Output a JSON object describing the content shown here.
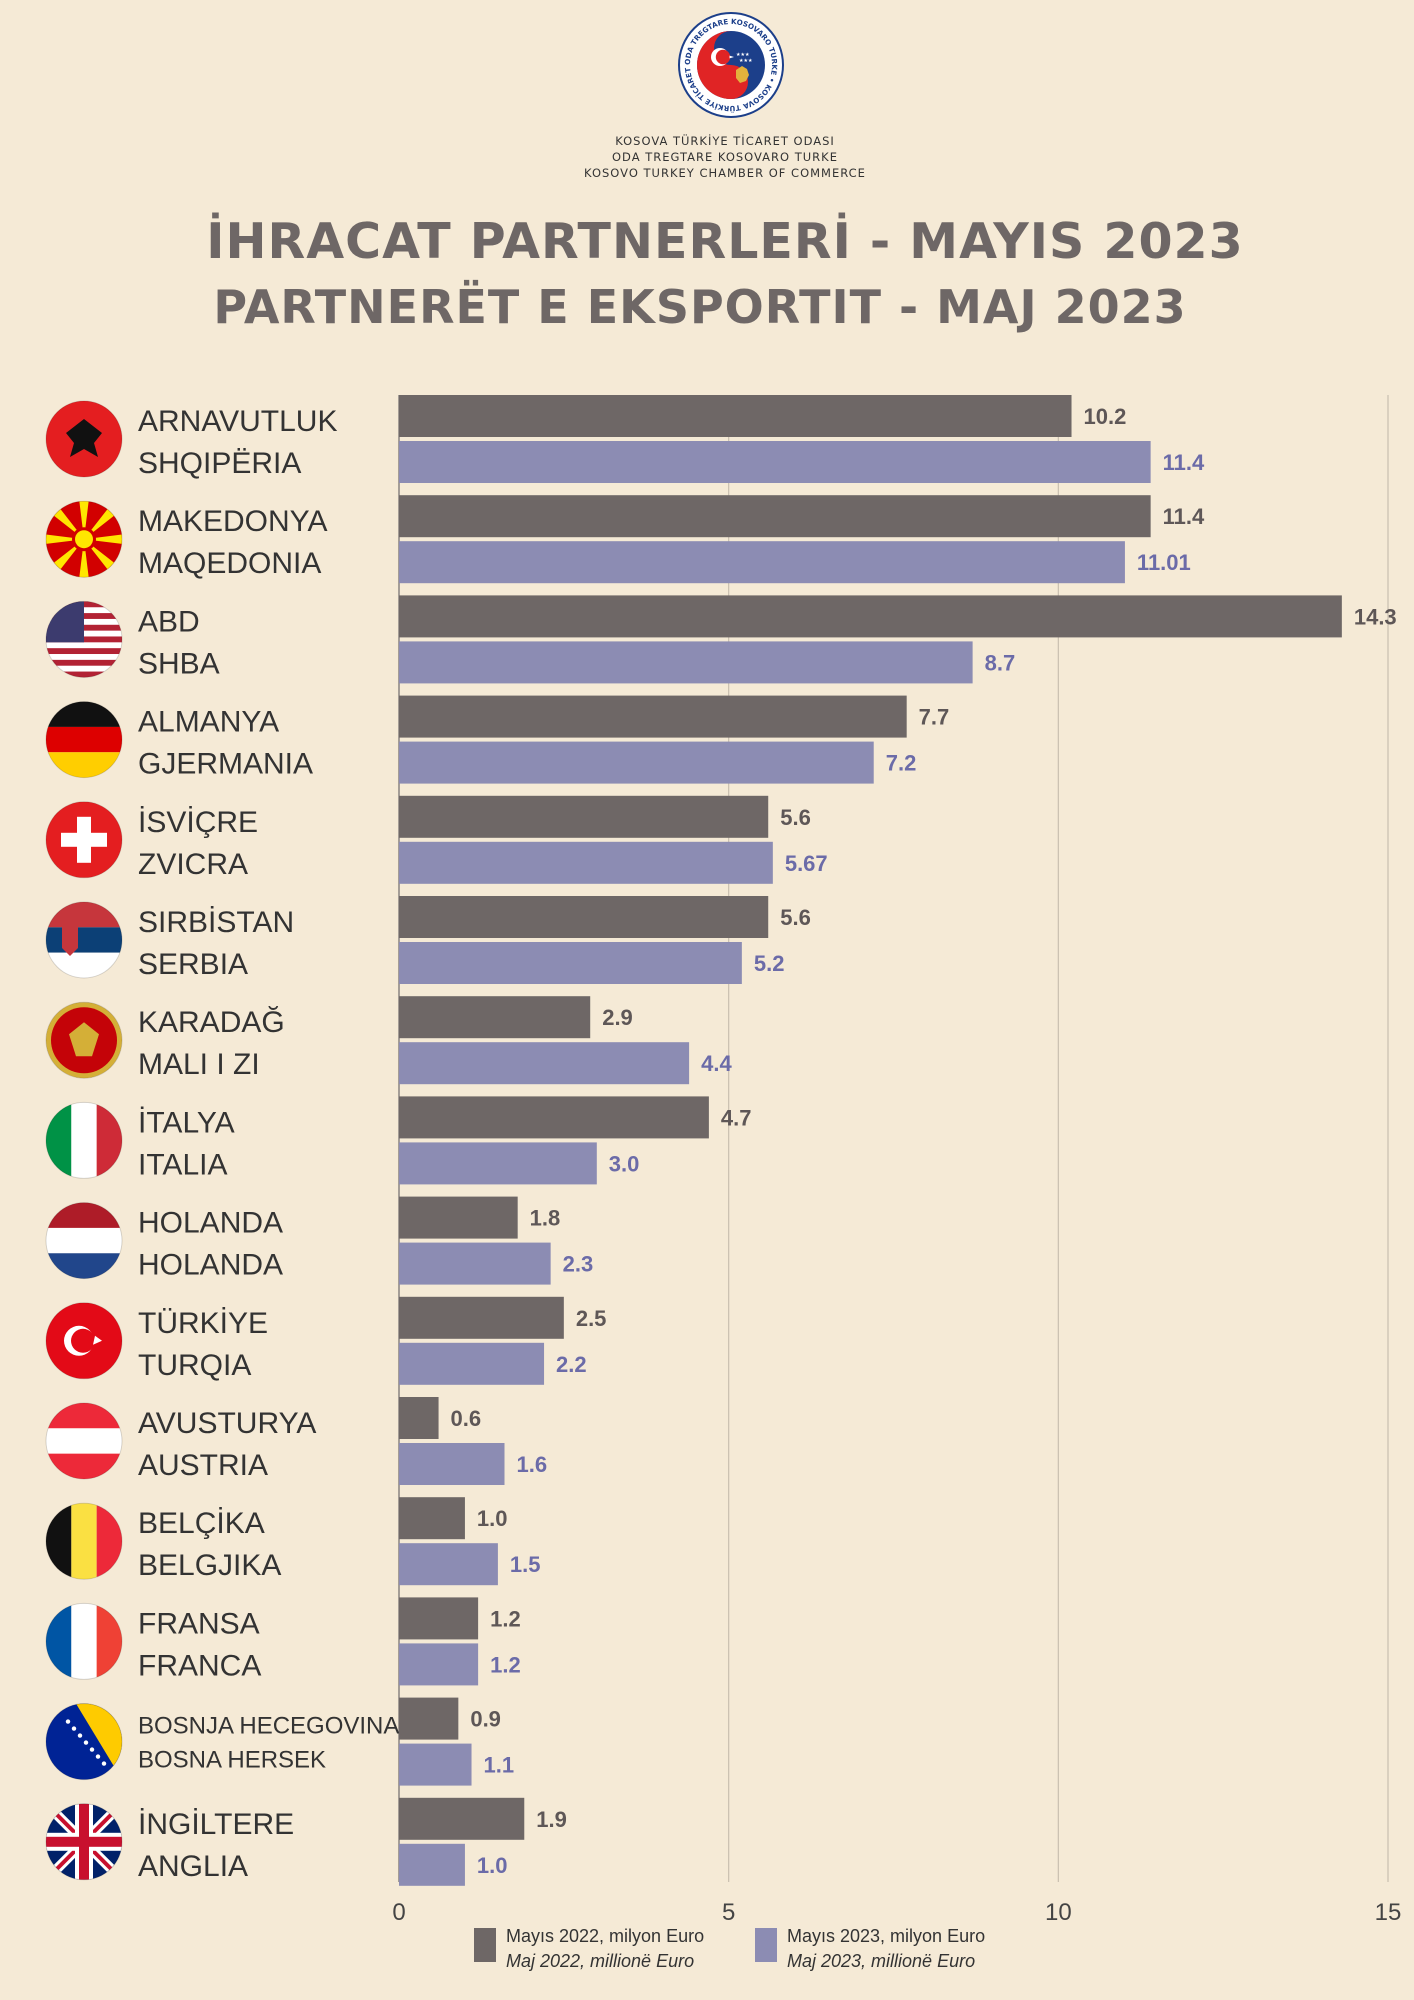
{
  "header": {
    "org_lines": [
      "KOSOVA TÜRKİYE TİCARET ODASI",
      "ODA TREGTARE KOSOVARO TURKE",
      "KOSOVO TURKEY CHAMBER OF COMMERCE"
    ],
    "logo_ring_text": "ODA TREGTARE KOSOVARO TURKE • KOSOVA TÜRKİYE TİCARET ODASI •"
  },
  "colors": {
    "background": "#f5ead6",
    "series_2022": "#6e6766",
    "series_2023": "#8c8cb3",
    "label_2022": "#5e5757",
    "label_2023": "#6b6ba8",
    "title": "#6e6766",
    "grid": "#c9bfb0"
  },
  "chart_data": {
    "type": "bar",
    "orientation": "horizontal",
    "title": "İHRACAT PARTNERLERİ - MAYIS 2023",
    "subtitle": "PARTNERËT E EKSPORTIT - MAJ 2023",
    "categories": [
      {
        "name_tr": "ARNAVUTLUK",
        "name_sq": "SHQIPËRIA",
        "flag": "albania-flag-icon"
      },
      {
        "name_tr": "MAKEDONYA",
        "name_sq": "MAQEDONIA",
        "flag": "north-macedonia-flag-icon"
      },
      {
        "name_tr": "ABD",
        "name_sq": "SHBA",
        "flag": "usa-flag-icon"
      },
      {
        "name_tr": "ALMANYA",
        "name_sq": "GJERMANIA",
        "flag": "germany-flag-icon"
      },
      {
        "name_tr": "İSVİÇRE",
        "name_sq": "ZVICRA",
        "flag": "switzerland-flag-icon"
      },
      {
        "name_tr": "SIRBİSTAN",
        "name_sq": "SERBIA",
        "flag": "serbia-flag-icon"
      },
      {
        "name_tr": "KARADAĞ",
        "name_sq": "MALI I ZI",
        "flag": "montenegro-flag-icon"
      },
      {
        "name_tr": "İTALYA",
        "name_sq": "ITALIA",
        "flag": "italy-flag-icon"
      },
      {
        "name_tr": "HOLANDA",
        "name_sq": "HOLANDA",
        "flag": "netherlands-flag-icon"
      },
      {
        "name_tr": "TÜRKİYE",
        "name_sq": "TURQIA",
        "flag": "turkey-flag-icon"
      },
      {
        "name_tr": "AVUSTURYA",
        "name_sq": "AUSTRIA",
        "flag": "austria-flag-icon"
      },
      {
        "name_tr": "BELÇİKA",
        "name_sq": "BELGJIKA",
        "flag": "belgium-flag-icon"
      },
      {
        "name_tr": "FRANSA",
        "name_sq": "FRANCA",
        "flag": "france-flag-icon"
      },
      {
        "name_tr": "BOSNJA HECEGOVINA",
        "name_sq": "BOSNA HERSEK",
        "flag": "bosnia-flag-icon"
      },
      {
        "name_tr": "İNGİLTERE",
        "name_sq": "ANGLIA",
        "flag": "uk-flag-icon"
      }
    ],
    "series": [
      {
        "name": "Mayıs 2022, milyon Euro",
        "name_alt": "Maj 2022, millionë Euro",
        "values": [
          10.2,
          11.4,
          14.3,
          7.7,
          5.6,
          5.6,
          2.9,
          4.7,
          1.8,
          2.5,
          0.6,
          1.0,
          1.2,
          0.9,
          1.9
        ],
        "labels": [
          "10.2",
          "11.4",
          "14.3",
          "7.7",
          "5.6",
          "5.6",
          "2.9",
          "4.7",
          "1.8",
          "2.5",
          "0.6",
          "1.0",
          "1.2",
          "0.9",
          "1.9"
        ]
      },
      {
        "name": "Mayıs 2023, milyon Euro",
        "name_alt": "Maj 2023, millionë Euro",
        "values": [
          11.4,
          11.01,
          8.7,
          7.2,
          5.67,
          5.2,
          4.4,
          3.0,
          2.3,
          2.2,
          1.6,
          1.5,
          1.2,
          1.1,
          1.0
        ],
        "labels": [
          "11.4",
          "11.01",
          "8.7",
          "7.2",
          "5.67",
          "5.2",
          "4.4",
          "3.0",
          "2.3",
          "2.2",
          "1.6",
          "1.5",
          "1.2",
          "1.1",
          "1.0"
        ]
      }
    ],
    "xlim": [
      0,
      15
    ],
    "xticks": [
      "0",
      "5",
      "10",
      "15"
    ],
    "grid": true,
    "legend_position": "bottom"
  }
}
